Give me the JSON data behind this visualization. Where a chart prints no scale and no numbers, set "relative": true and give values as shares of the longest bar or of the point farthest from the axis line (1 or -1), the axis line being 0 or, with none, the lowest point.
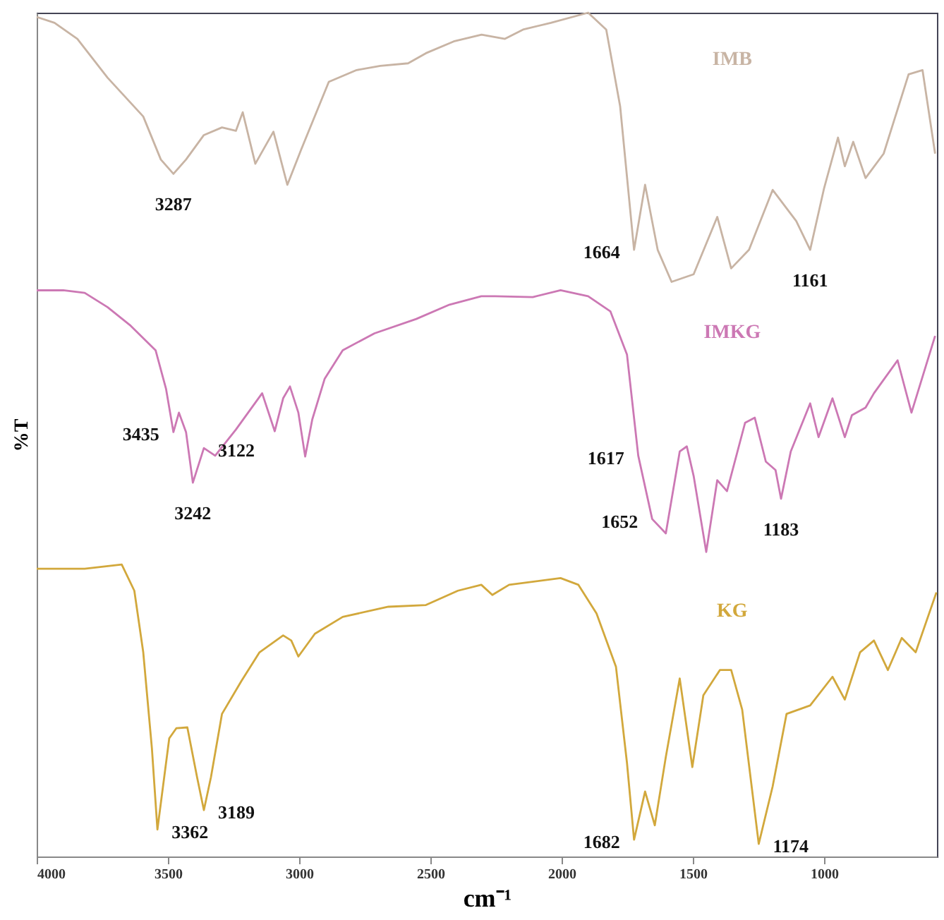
{
  "chart_data": {
    "type": "line",
    "xlabel": "cm⁻¹",
    "ylabel": "%T",
    "relative": true,
    "grid": false,
    "marker": "none",
    "line_style": "solid",
    "xlim": [
      4000,
      570
    ],
    "xticks": [
      4000,
      3500,
      3000,
      2500,
      2000,
      1500,
      1000
    ],
    "series": [
      {
        "name": "IMB",
        "color": "#c8b4a4",
        "x": [
          4000,
          3932,
          3845,
          3730,
          3594,
          3527,
          3479,
          3431,
          3363,
          3294,
          3241,
          3215,
          3167,
          3098,
          3045,
          2992,
          2887,
          2781,
          2691,
          2585,
          2517,
          2411,
          2305,
          2216,
          2147,
          2041,
          1899,
          1830,
          1777,
          1724,
          1682,
          1634,
          1581,
          1497,
          1407,
          1354,
          1286,
          1196,
          1106,
          1053,
          1000,
          947,
          921,
          889,
          842,
          773,
          678,
          625,
          577
        ],
        "values": [
          0.995,
          0.988,
          0.969,
          0.923,
          0.877,
          0.826,
          0.809,
          0.826,
          0.855,
          0.864,
          0.86,
          0.882,
          0.821,
          0.859,
          0.796,
          0.838,
          0.918,
          0.932,
          0.937,
          0.94,
          0.952,
          0.966,
          0.974,
          0.969,
          0.98,
          0.988,
          1.0,
          0.98,
          0.889,
          0.719,
          0.796,
          0.719,
          0.681,
          0.69,
          0.758,
          0.697,
          0.719,
          0.79,
          0.753,
          0.719,
          0.792,
          0.852,
          0.818,
          0.847,
          0.804,
          0.833,
          0.927,
          0.932,
          0.833
        ]
      },
      {
        "name": "IMKG",
        "color": "#cc78b4",
        "x": [
          4000,
          3899,
          3817,
          3730,
          3642,
          3547,
          3507,
          3479,
          3458,
          3431,
          3405,
          3363,
          3320,
          3241,
          3141,
          3093,
          3061,
          3035,
          3003,
          2977,
          2950,
          2903,
          2834,
          2713,
          2554,
          2427,
          2306,
          2253,
          2110,
          2004,
          1899,
          1814,
          1751,
          1708,
          1655,
          1603,
          1550,
          1523,
          1497,
          1449,
          1407,
          1370,
          1301,
          1264,
          1222,
          1185,
          1164,
          1127,
          1053,
          1021,
          968,
          921,
          894,
          842,
          810,
          720,
          667,
          577
        ],
        "values": [
          0.671,
          0.671,
          0.668,
          0.651,
          0.629,
          0.6,
          0.554,
          0.503,
          0.526,
          0.503,
          0.443,
          0.484,
          0.475,
          0.506,
          0.549,
          0.504,
          0.543,
          0.557,
          0.526,
          0.474,
          0.518,
          0.566,
          0.6,
          0.62,
          0.637,
          0.654,
          0.664,
          0.664,
          0.663,
          0.671,
          0.664,
          0.646,
          0.595,
          0.475,
          0.4,
          0.383,
          0.48,
          0.486,
          0.451,
          0.361,
          0.446,
          0.433,
          0.514,
          0.52,
          0.468,
          0.458,
          0.424,
          0.48,
          0.537,
          0.497,
          0.543,
          0.497,
          0.523,
          0.532,
          0.549,
          0.588,
          0.526,
          0.617
        ]
      },
      {
        "name": "KG",
        "color": "#d2a83c",
        "x": [
          4000,
          3817,
          3676,
          3628,
          3594,
          3561,
          3540,
          3495,
          3468,
          3426,
          3389,
          3363,
          3336,
          3294,
          3220,
          3151,
          3061,
          3030,
          3003,
          2940,
          2834,
          2660,
          2517,
          2395,
          2306,
          2264,
          2200,
          2004,
          1936,
          1867,
          1793,
          1751,
          1724,
          1682,
          1645,
          1603,
          1550,
          1502,
          1460,
          1397,
          1354,
          1312,
          1249,
          1196,
          1143,
          1053,
          968,
          921,
          863,
          810,
          757,
          704,
          651,
          572
        ],
        "values": [
          0.341,
          0.341,
          0.346,
          0.315,
          0.242,
          0.128,
          0.032,
          0.14,
          0.152,
          0.153,
          0.094,
          0.055,
          0.094,
          0.169,
          0.208,
          0.242,
          0.262,
          0.256,
          0.237,
          0.264,
          0.284,
          0.296,
          0.298,
          0.315,
          0.322,
          0.31,
          0.322,
          0.33,
          0.322,
          0.288,
          0.225,
          0.111,
          0.02,
          0.077,
          0.037,
          0.118,
          0.211,
          0.106,
          0.191,
          0.221,
          0.221,
          0.174,
          0.015,
          0.083,
          0.169,
          0.179,
          0.213,
          0.186,
          0.242,
          0.256,
          0.221,
          0.259,
          0.242,
          0.313
        ]
      }
    ],
    "annotations": [
      {
        "text": "3287",
        "x": 3479,
        "y": 0.809
      },
      {
        "text": "1664",
        "x": 1724,
        "y": 0.719
      },
      {
        "text": "1161",
        "x": 1053,
        "y": 0.719
      },
      {
        "text": "3435",
        "x": 3479,
        "y": 0.503
      },
      {
        "text": "3242",
        "x": 3405,
        "y": 0.443
      },
      {
        "text": "3122",
        "x": 3363,
        "y": 0.484
      },
      {
        "text": "1617",
        "x": 1708,
        "y": 0.475
      },
      {
        "text": "1652",
        "x": 1655,
        "y": 0.4
      },
      {
        "text": "1183",
        "x": 1164,
        "y": 0.424
      },
      {
        "text": "3189",
        "x": 3363,
        "y": 0.055
      },
      {
        "text": "3362",
        "x": 3540,
        "y": 0.032
      },
      {
        "text": "1682",
        "x": 1724,
        "y": 0.02
      },
      {
        "text": "1174",
        "x": 1249,
        "y": 0.015
      }
    ]
  }
}
